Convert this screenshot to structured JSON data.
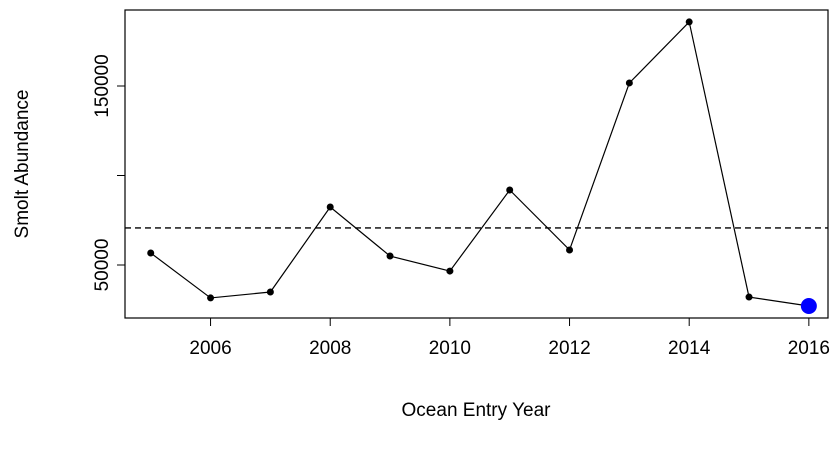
{
  "chart_data": {
    "type": "line",
    "x_label": "Ocean Entry Year",
    "y_label": "Smolt Abundance",
    "x": [
      2005,
      2006,
      2007,
      2008,
      2009,
      2010,
      2011,
      2012,
      2013,
      2014,
      2015,
      2016
    ],
    "series": [
      {
        "color": "#000000",
        "values": [
          56700,
          31600,
          34900,
          82400,
          55000,
          46600,
          91900,
          58400,
          151700,
          185800,
          32100,
          27100
        ]
      }
    ],
    "highlight": {
      "x": 2016,
      "value": 27100,
      "color": "#0000ff"
    },
    "reference_line": {
      "value": 70700,
      "style": "dashed"
    },
    "xlim": [
      2004.57,
      2016.32
    ],
    "xticks": [
      2006,
      2008,
      2010,
      2012,
      2014,
      2016
    ],
    "ylim": [
      20390,
      192460
    ],
    "yticks": [
      50000,
      150000
    ],
    "y_unlabeled_ticks": [
      100000
    ]
  }
}
